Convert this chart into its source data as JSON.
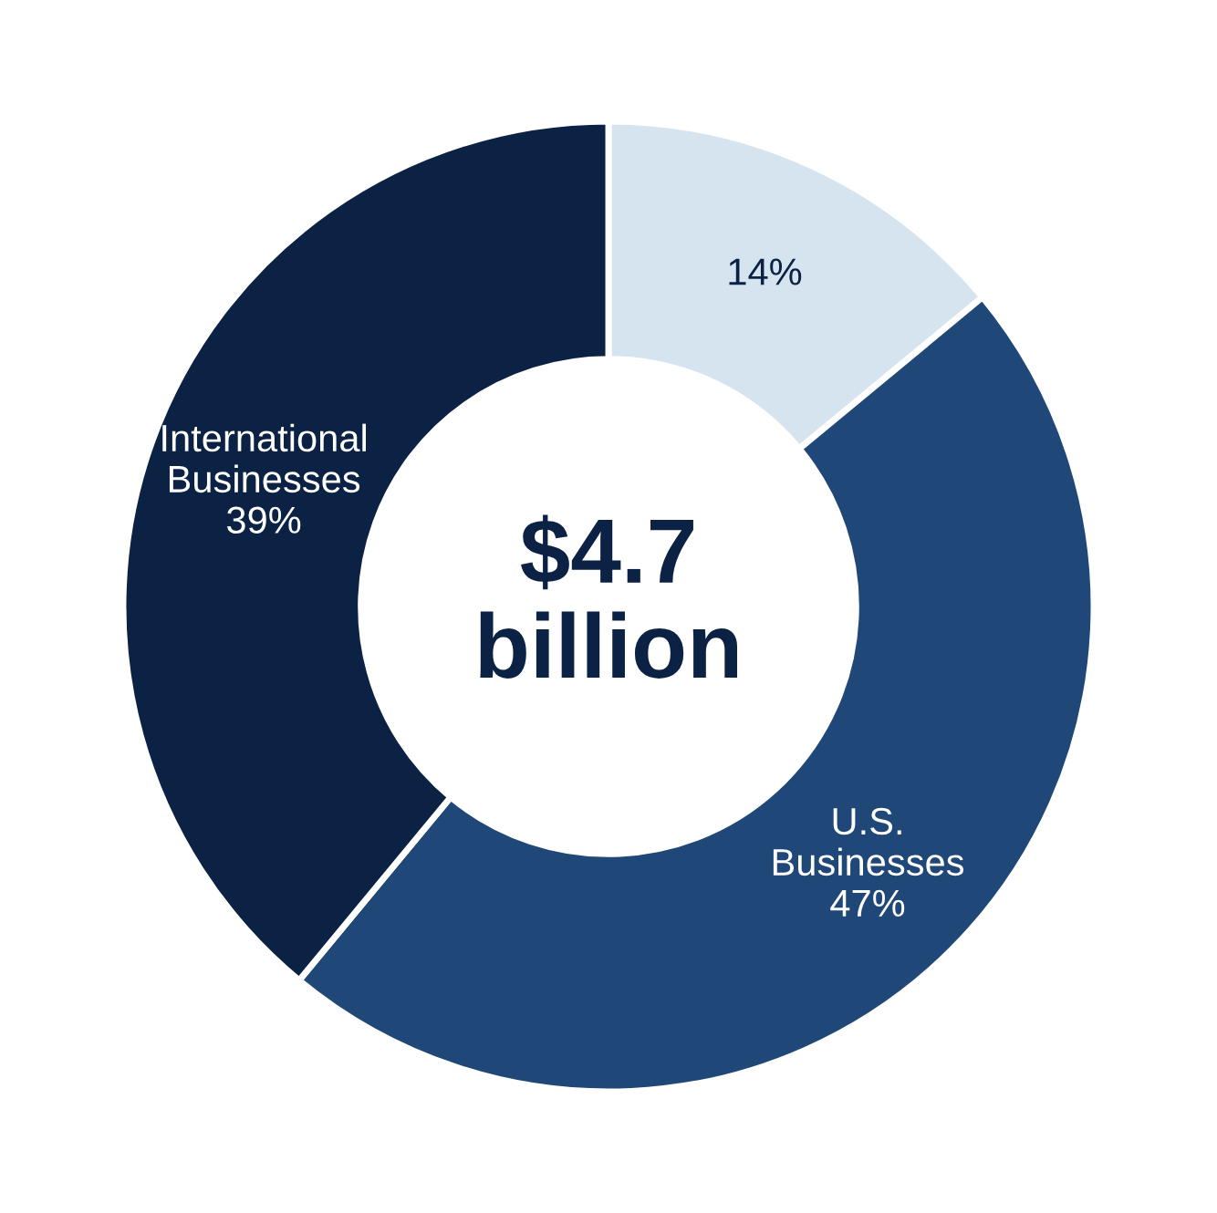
{
  "chart_data": {
    "type": "donut",
    "categories": [
      null,
      "U.S.\nBusinesses",
      "International\nBusinesses"
    ],
    "values": [
      14,
      47,
      39
    ],
    "value_labels": [
      "14%",
      "47%",
      "39%"
    ],
    "colors": [
      "#d6e4f0",
      "#1f4778",
      "#0b2244"
    ],
    "annotations": [
      "$4.7\nbillion"
    ]
  }
}
